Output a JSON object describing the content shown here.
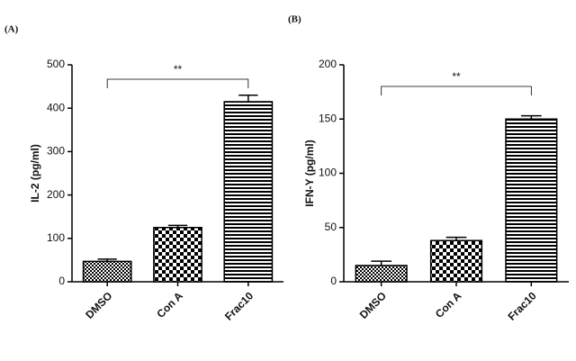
{
  "chart_data": [
    {
      "type": "bar",
      "panel": "(A)",
      "ylabel": "IL-2 (pg/ml)",
      "categories": [
        "DMSO",
        "Con A",
        "Frac10"
      ],
      "values": [
        47,
        125,
        415
      ],
      "errors": [
        5,
        5,
        15
      ],
      "ylim": [
        0,
        500
      ],
      "yticks": [
        0,
        100,
        200,
        300,
        400,
        500
      ],
      "annotation": "**"
    },
    {
      "type": "bar",
      "panel": "(B)",
      "ylabel": "IFN-Y (pg/ml)",
      "categories": [
        "DMSO",
        "Con A",
        "Frac10"
      ],
      "values": [
        15,
        38,
        150
      ],
      "errors": [
        4,
        3,
        3
      ],
      "ylim": [
        0,
        200
      ],
      "yticks": [
        0,
        50,
        100,
        150,
        200
      ],
      "annotation": "**"
    }
  ]
}
